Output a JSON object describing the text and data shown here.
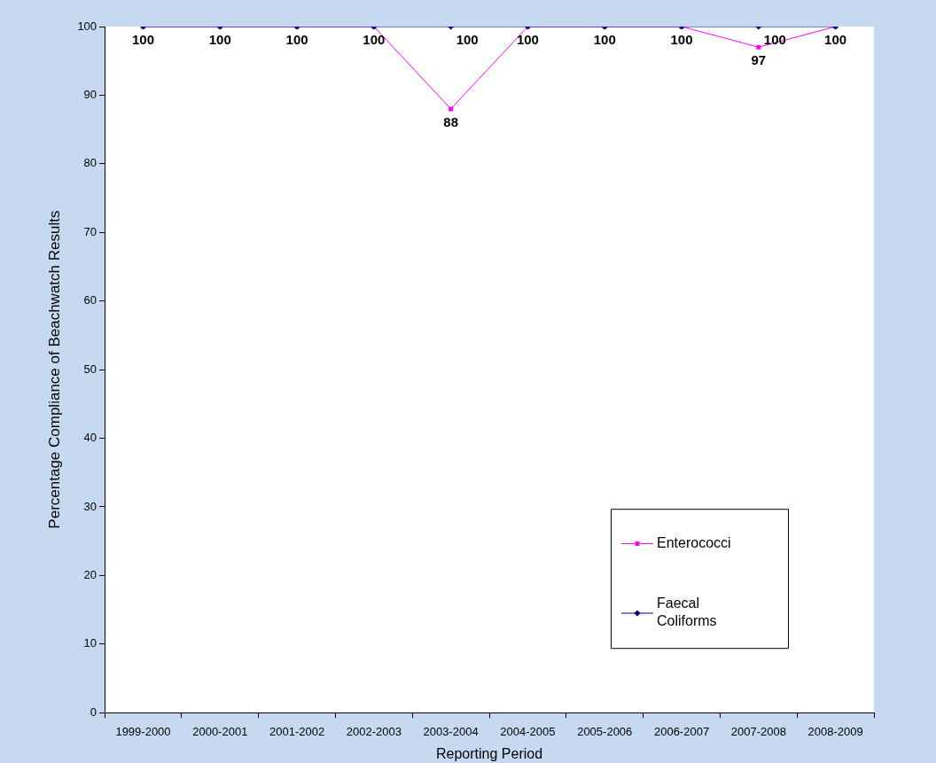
{
  "chart_data": {
    "type": "line",
    "xlabel": "Reporting Period",
    "ylabel": "Percentage Compliance of Beachwatch Results",
    "categories": [
      "1999-2000",
      "2000-2001",
      "2001-2002",
      "2002-2003",
      "2003-2004",
      "2004-2005",
      "2005-2006",
      "2006-2007",
      "2007-2008",
      "2008-2009"
    ],
    "series": [
      {
        "name": "Enterococci",
        "color": "#ff00ff",
        "marker": "square",
        "values": [
          100,
          100,
          100,
          100,
          88,
          100,
          100,
          100,
          97,
          100
        ],
        "value_labels": [
          "100",
          "100",
          "100",
          "100",
          "88",
          "100",
          "100",
          "100",
          "97",
          "100"
        ]
      },
      {
        "name": "Faecal Coliforms",
        "color": "#000080",
        "marker": "diamond",
        "values": [
          100,
          100,
          100,
          100,
          100,
          100,
          100,
          100,
          100,
          100
        ],
        "value_labels": [
          null,
          null,
          null,
          null,
          "100",
          null,
          null,
          null,
          "100",
          null
        ]
      }
    ],
    "ylim": [
      0,
      100
    ],
    "yticks": [
      0,
      10,
      20,
      30,
      40,
      50,
      60,
      70,
      80,
      90,
      100
    ],
    "legend": "bottom right"
  }
}
